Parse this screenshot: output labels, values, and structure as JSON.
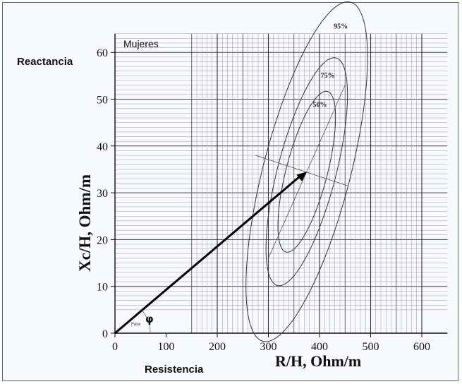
{
  "chart_data": {
    "type": "scatter",
    "title": "",
    "xlabel": "R/H, Ohm/m",
    "ylabel": "Xc/H, Ohm/m",
    "xlim": [
      0,
      650
    ],
    "ylim": [
      0,
      65
    ],
    "x_ticks": [
      0,
      100,
      200,
      300,
      400,
      500,
      600
    ],
    "y_ticks": [
      0,
      10,
      20,
      30,
      40,
      50,
      60
    ],
    "grid": true,
    "annotations": {
      "group_label": "Mujeres",
      "y_caption": "Reactancia",
      "x_caption": "Resistencia",
      "angle_symbol": "φ",
      "angle_caption": "Fase"
    },
    "vector": {
      "x": [
        0,
        375
      ],
      "y": [
        0,
        34.5
      ]
    },
    "tolerance_ellipses": [
      {
        "label": "50%",
        "center": [
          375,
          34.5
        ],
        "semi_major": 18,
        "semi_minor": 5.3,
        "rotation_deg": 72
      },
      {
        "label": "75%",
        "center": [
          375,
          34.5
        ],
        "semi_major": 25.5,
        "semi_minor": 7.5,
        "rotation_deg": 72
      },
      {
        "label": "95%",
        "center": [
          375,
          34.5
        ],
        "semi_major": 38,
        "semi_minor": 11.2,
        "rotation_deg": 72
      }
    ],
    "ellipse_axes": {
      "major_axis": {
        "x": [
          300,
          450
        ],
        "y": [
          16,
          53
        ]
      },
      "minor_axis": {
        "x": [
          275,
          455
        ],
        "y": [
          38,
          31.5
        ]
      }
    }
  }
}
